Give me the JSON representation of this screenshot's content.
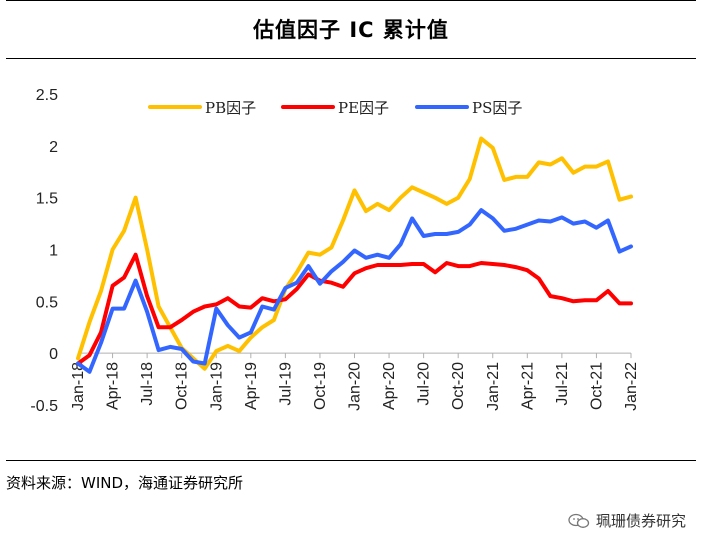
{
  "title": "估值因子 IC 累计值",
  "source": "资料来源：WIND，海通证券研究所",
  "brand": {
    "name": "珮珊债券研究",
    "icon": "wechat-icon"
  },
  "chart_data": {
    "type": "line",
    "title": "估值因子 IC 累计值",
    "xlabel": "",
    "ylabel": "",
    "ylim": [
      -0.5,
      2.5
    ],
    "yticks": [
      -0.5,
      0,
      0.5,
      1,
      1.5,
      2,
      2.5
    ],
    "ytick_labels": [
      "-0.5",
      "0",
      "0.5",
      "1",
      "1.5",
      "2",
      "2.5"
    ],
    "legend_position": "top",
    "x_tick_labels": [
      {
        "label": "Jan-18",
        "index": 0
      },
      {
        "label": "Apr-18",
        "index": 3
      },
      {
        "label": "Jul-18",
        "index": 6
      },
      {
        "label": "Oct-18",
        "index": 9
      },
      {
        "label": "Jan-19",
        "index": 12
      },
      {
        "label": "Apr-19",
        "index": 15
      },
      {
        "label": "Jul-19",
        "index": 18
      },
      {
        "label": "Oct-19",
        "index": 21
      },
      {
        "label": "Jan-20",
        "index": 24
      },
      {
        "label": "Apr-20",
        "index": 27
      },
      {
        "label": "Jul-20",
        "index": 30
      },
      {
        "label": "Oct-20",
        "index": 33
      },
      {
        "label": "Jan-21",
        "index": 36
      },
      {
        "label": "Apr-21",
        "index": 39
      },
      {
        "label": "Jul-21",
        "index": 42
      },
      {
        "label": "Oct-21",
        "index": 45
      },
      {
        "label": "Jan-22",
        "index": 48
      }
    ],
    "series": [
      {
        "name": "PB因子",
        "color": "#FFC000",
        "values": [
          -0.05,
          0.3,
          0.6,
          1.0,
          1.18,
          1.5,
          1.0,
          0.45,
          0.25,
          0.05,
          -0.05,
          -0.15,
          0.02,
          0.07,
          0.02,
          0.15,
          0.25,
          0.32,
          0.62,
          0.78,
          0.97,
          0.95,
          1.02,
          1.28,
          1.57,
          1.37,
          1.44,
          1.38,
          1.5,
          1.6,
          1.55,
          1.5,
          1.44,
          1.5,
          1.68,
          2.07,
          1.98,
          1.67,
          1.7,
          1.7,
          1.84,
          1.82,
          1.88,
          1.74,
          1.8,
          1.8,
          1.85,
          1.48,
          1.51
        ]
      },
      {
        "name": "PE因子",
        "color": "#FF0000",
        "values": [
          -0.1,
          -0.02,
          0.2,
          0.65,
          0.73,
          0.95,
          0.55,
          0.25,
          0.25,
          0.32,
          0.4,
          0.45,
          0.47,
          0.53,
          0.45,
          0.44,
          0.53,
          0.5,
          0.52,
          0.62,
          0.76,
          0.7,
          0.68,
          0.64,
          0.77,
          0.82,
          0.85,
          0.85,
          0.85,
          0.86,
          0.86,
          0.78,
          0.87,
          0.84,
          0.84,
          0.87,
          0.86,
          0.85,
          0.83,
          0.8,
          0.72,
          0.55,
          0.53,
          0.5,
          0.51,
          0.51,
          0.6,
          0.48,
          0.48
        ]
      },
      {
        "name": "PS因子",
        "color": "#3366FF",
        "values": [
          -0.1,
          -0.18,
          0.1,
          0.43,
          0.43,
          0.7,
          0.4,
          0.03,
          0.06,
          0.04,
          -0.08,
          -0.1,
          0.43,
          0.27,
          0.15,
          0.2,
          0.45,
          0.42,
          0.63,
          0.68,
          0.84,
          0.67,
          0.79,
          0.88,
          0.99,
          0.92,
          0.95,
          0.92,
          1.05,
          1.3,
          1.13,
          1.15,
          1.15,
          1.17,
          1.24,
          1.38,
          1.3,
          1.18,
          1.2,
          1.24,
          1.28,
          1.27,
          1.31,
          1.25,
          1.27,
          1.21,
          1.28,
          0.98,
          1.03
        ]
      }
    ]
  }
}
